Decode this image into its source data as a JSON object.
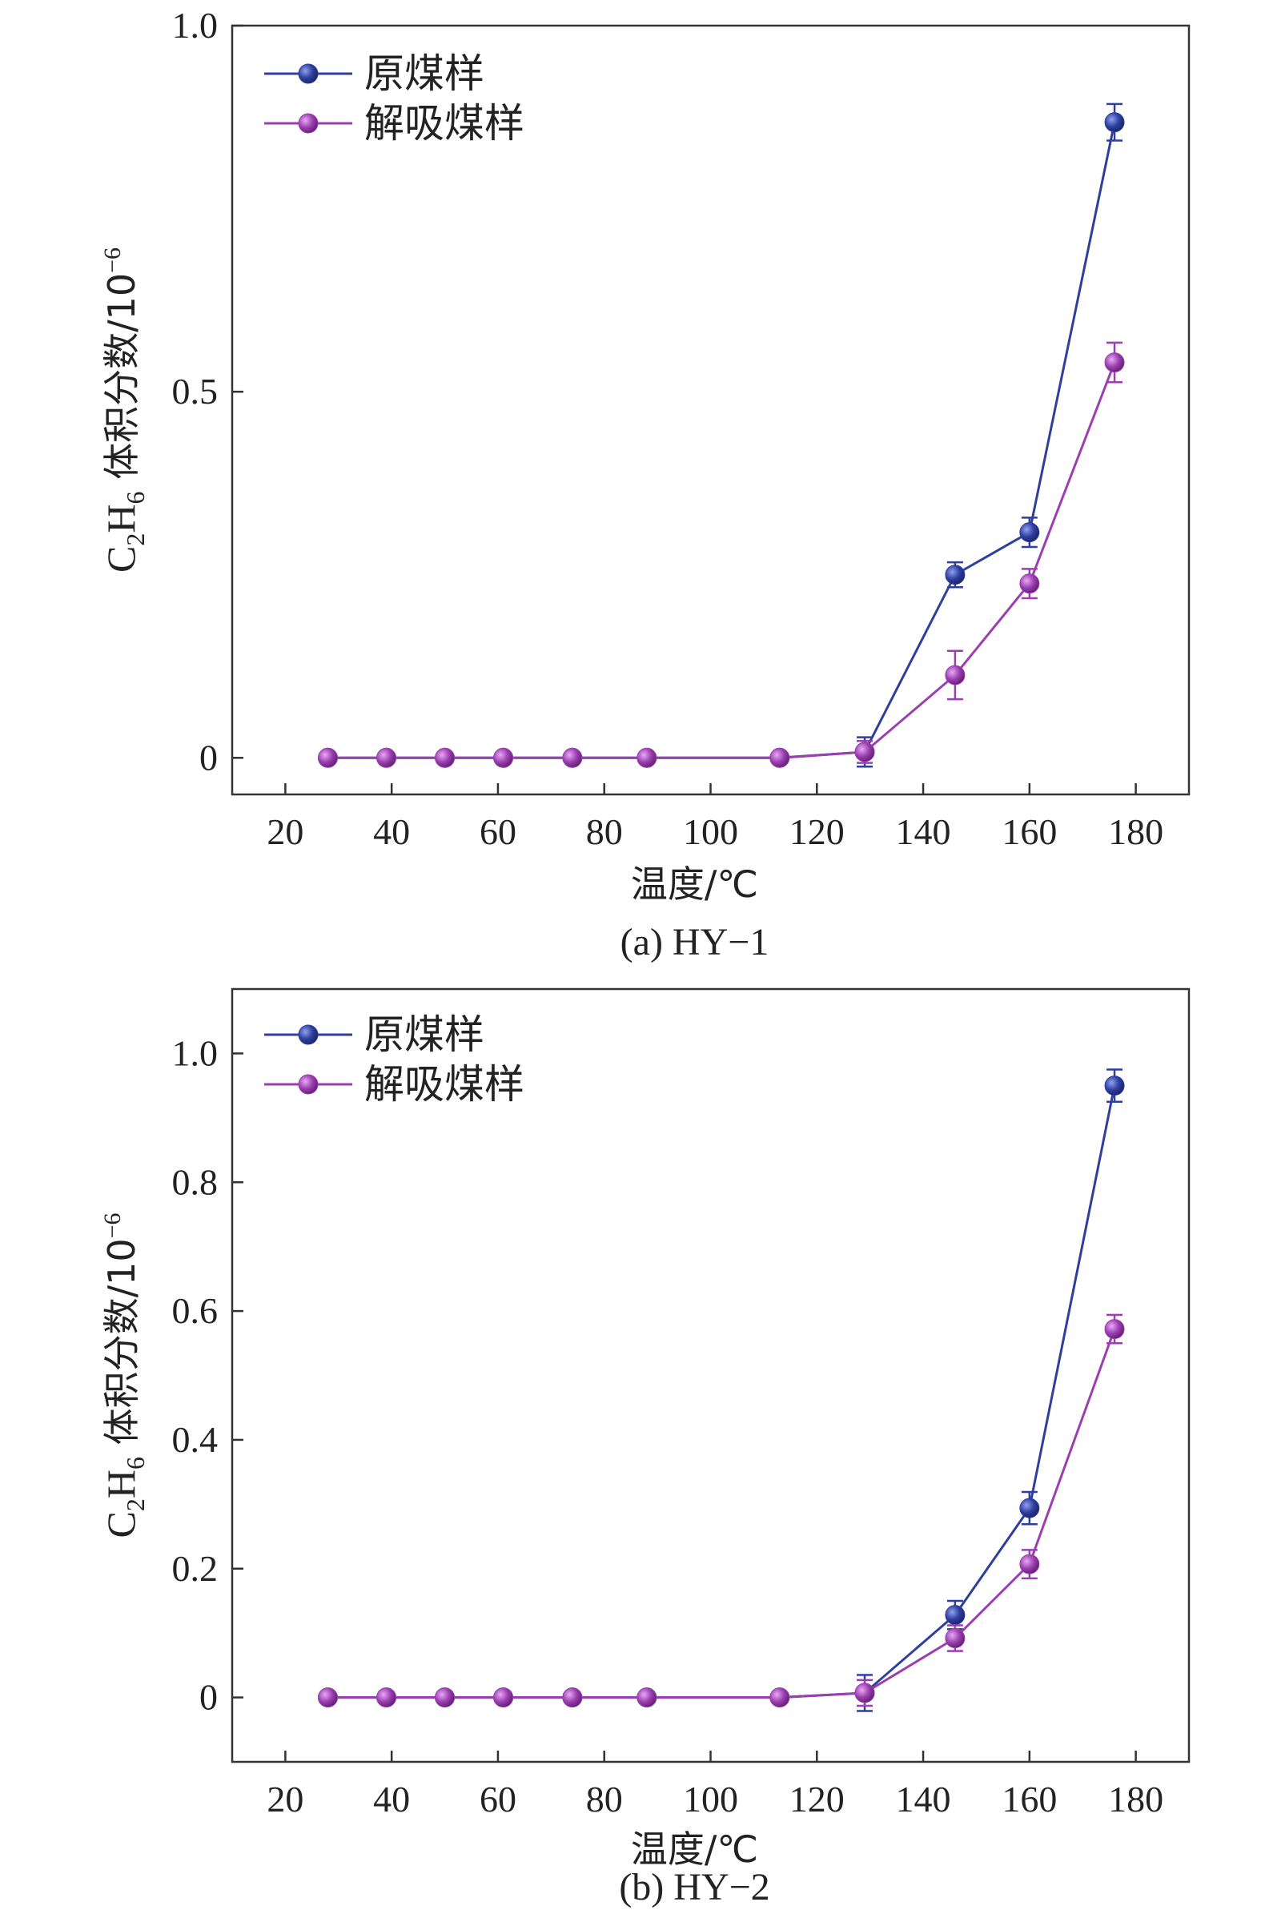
{
  "colors": {
    "series1": "#2f3f9e",
    "series2": "#9b3fb0",
    "axis": "#333333"
  },
  "chart_data": [
    {
      "type": "line",
      "caption": "(a) HY−1",
      "xlabel": "温度/℃",
      "ylabel_main": "C",
      "ylabel_sub1": "2",
      "ylabel_mid": "H",
      "ylabel_sub2": "6",
      "ylabel_rest": " 体积分数/10",
      "ylabel_sup": "−6",
      "xlim": [
        10,
        190
      ],
      "ylim": [
        -0.05,
        1.0
      ],
      "xticks": [
        20,
        40,
        60,
        80,
        100,
        120,
        140,
        160,
        180
      ],
      "yticks": [
        0,
        0.5,
        1.0
      ],
      "ytick_labels": [
        "0",
        "0.5",
        "1.0"
      ],
      "legend_position": "top-left",
      "x": [
        28,
        39,
        50,
        61,
        74,
        88,
        113,
        129,
        146,
        160,
        176
      ],
      "series": [
        {
          "name": "原煤样",
          "values": [
            0,
            0,
            0,
            0,
            0,
            0,
            0,
            0.008,
            0.25,
            0.308,
            0.868
          ],
          "errors": [
            0,
            0,
            0,
            0,
            0,
            0,
            0,
            0.02,
            0.017,
            0.02,
            0.025
          ]
        },
        {
          "name": "解吸煤样",
          "values": [
            0,
            0,
            0,
            0,
            0,
            0,
            0,
            0.008,
            0.113,
            0.238,
            0.54
          ],
          "errors": [
            0,
            0,
            0,
            0,
            0,
            0,
            0,
            0.015,
            0.033,
            0.02,
            0.027
          ]
        }
      ]
    },
    {
      "type": "line",
      "caption": "(b) HY−2",
      "xlabel": "温度/℃",
      "ylabel_main": "C",
      "ylabel_sub1": "2",
      "ylabel_mid": "H",
      "ylabel_sub2": "6",
      "ylabel_rest": " 体积分数/10",
      "ylabel_sup": "−6",
      "xlim": [
        10,
        190
      ],
      "ylim": [
        -0.1,
        1.1
      ],
      "xticks": [
        20,
        40,
        60,
        80,
        100,
        120,
        140,
        160,
        180
      ],
      "yticks": [
        0,
        0.2,
        0.4,
        0.6,
        0.8,
        1.0
      ],
      "ytick_labels": [
        "0",
        "0.2",
        "0.4",
        "0.6",
        "0.8",
        "1.0"
      ],
      "legend_position": "top-left",
      "x": [
        28,
        39,
        50,
        61,
        74,
        88,
        113,
        129,
        146,
        160,
        176
      ],
      "series": [
        {
          "name": "原煤样",
          "values": [
            0,
            0,
            0,
            0,
            0,
            0,
            0,
            0.007,
            0.128,
            0.294,
            0.95
          ],
          "errors": [
            0,
            0,
            0,
            0,
            0,
            0,
            0,
            0.028,
            0.022,
            0.025,
            0.025
          ]
        },
        {
          "name": "解吸煤样",
          "values": [
            0,
            0,
            0,
            0,
            0,
            0,
            0,
            0.007,
            0.092,
            0.207,
            0.572
          ],
          "errors": [
            0,
            0,
            0,
            0,
            0,
            0,
            0,
            0.02,
            0.02,
            0.022,
            0.022
          ]
        }
      ]
    }
  ]
}
